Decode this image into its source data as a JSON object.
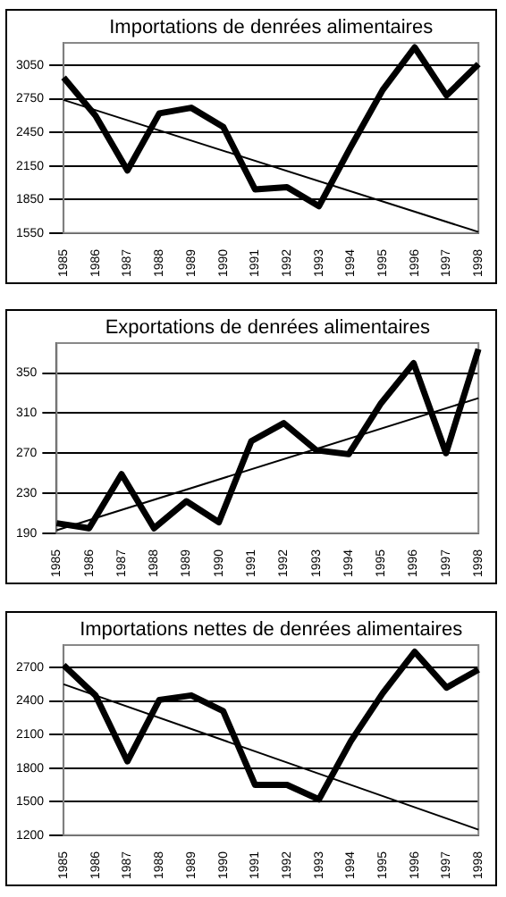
{
  "chart_data": [
    {
      "type": "line",
      "title": "Importations de denrées alimentaires",
      "categories": [
        "1985",
        "1986",
        "1987",
        "1988",
        "1989",
        "1990",
        "1991",
        "1992",
        "1993",
        "1994",
        "1995",
        "1996",
        "1997",
        "1998"
      ],
      "series": [
        {
          "color": "#000000",
          "values": [
            2940,
            2600,
            2110,
            2620,
            2670,
            2500,
            1940,
            1960,
            1790,
            2320,
            2830,
            3210,
            2780,
            3060
          ]
        },
        {
          "color": "#000000",
          "values": [
            2740,
            null,
            null,
            null,
            null,
            null,
            null,
            null,
            null,
            null,
            null,
            null,
            null,
            1560
          ]
        }
      ],
      "ylim": [
        1550,
        3250
      ],
      "yticks": [
        1550,
        1850,
        2150,
        2450,
        2750,
        3050
      ],
      "grid": "y",
      "legend": false,
      "marker": "none"
    },
    {
      "type": "line",
      "title": "Exportations de denrées alimentaires",
      "categories": [
        "1985",
        "1986",
        "1987",
        "1988",
        "1989",
        "1990",
        "1991",
        "1992",
        "1993",
        "1994",
        "1995",
        "1996",
        "1997",
        "1998"
      ],
      "series": [
        {
          "color": "#000000",
          "values": [
            200,
            195,
            249,
            195,
            222,
            201,
            282,
            300,
            273,
            269,
            320,
            360,
            270,
            374
          ]
        },
        {
          "color": "#000000",
          "values": [
            193,
            null,
            null,
            null,
            null,
            null,
            null,
            null,
            null,
            null,
            null,
            null,
            null,
            325
          ]
        }
      ],
      "ylim": [
        190,
        380
      ],
      "yticks": [
        190,
        230,
        270,
        310,
        350
      ],
      "grid": "y",
      "legend": false,
      "marker": "none"
    },
    {
      "type": "line",
      "title": "Importations nettes de denrées alimentaires",
      "categories": [
        "1985",
        "1986",
        "1987",
        "1988",
        "1989",
        "1990",
        "1991",
        "1992",
        "1993",
        "1994",
        "1995",
        "1996",
        "1997",
        "1998"
      ],
      "series": [
        {
          "color": "#000000",
          "values": [
            2720,
            2450,
            1860,
            2410,
            2450,
            2310,
            1650,
            1650,
            1520,
            2040,
            2470,
            2840,
            2520,
            2680
          ]
        },
        {
          "color": "#000000",
          "values": [
            2550,
            null,
            null,
            null,
            null,
            null,
            null,
            null,
            null,
            null,
            null,
            null,
            null,
            1250
          ]
        }
      ],
      "ylim": [
        1200,
        2900
      ],
      "yticks": [
        1200,
        1500,
        1800,
        2100,
        2400,
        2700
      ],
      "grid": "y",
      "legend": false,
      "marker": "none"
    }
  ]
}
